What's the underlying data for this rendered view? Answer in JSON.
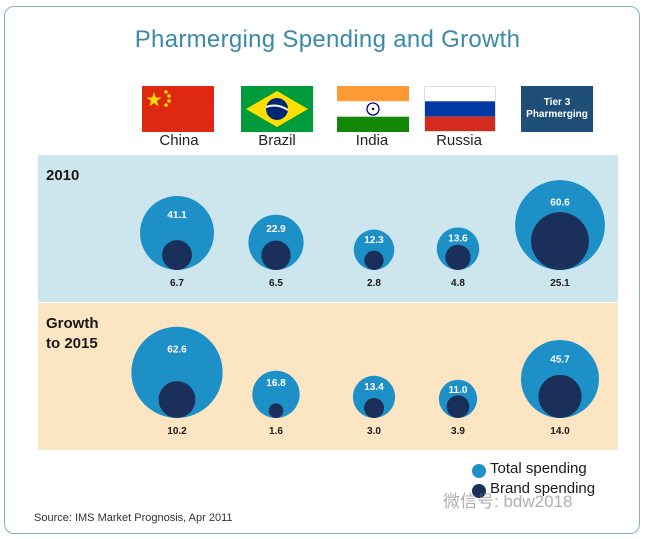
{
  "title": "Pharmerging Spending and Growth",
  "columns": [
    {
      "label": "China",
      "flag": "china-flag"
    },
    {
      "label": "Brazil",
      "flag": "brazil-flag"
    },
    {
      "label": "India",
      "flag": "india-flag"
    },
    {
      "label": "Russia",
      "flag": "russia-flag"
    },
    {
      "label": "Tier 3 Pharmerging",
      "flag": "tier-3-box"
    }
  ],
  "tier_box": {
    "line1": "Tier 3",
    "line2": "Pharmerging"
  },
  "rows": [
    {
      "label_line1": "2010",
      "label_line2": ""
    },
    {
      "label_line1": "Growth",
      "label_line2": "to 2015"
    }
  ],
  "legend": {
    "total": "Total spending",
    "brand": "Brand spending"
  },
  "source": "Source: IMS Market Prognosis, Apr 2011",
  "watermark": "微信号: bdw2018",
  "colors": {
    "total": "#1e90c8",
    "brand": "#1b2f5b",
    "band_2010": "#cde6ee",
    "band_2015": "#fbe5c2",
    "title": "#3b8aa8"
  },
  "chart_data": {
    "type": "bubble",
    "categories": [
      "China",
      "Brazil",
      "India",
      "Russia",
      "Tier 3 Pharmerging"
    ],
    "row_groups": [
      "2010",
      "Growth to 2015"
    ],
    "series": [
      {
        "name": "Total spending",
        "group": "2010",
        "values": [
          41.1,
          22.9,
          12.3,
          13.6,
          60.6
        ]
      },
      {
        "name": "Brand spending",
        "group": "2010",
        "values": [
          6.7,
          6.5,
          2.8,
          4.8,
          25.1
        ]
      },
      {
        "name": "Total spending",
        "group": "Growth to 2015",
        "values": [
          62.6,
          16.8,
          13.4,
          11.0,
          45.7
        ]
      },
      {
        "name": "Brand spending",
        "group": "Growth to 2015",
        "values": [
          10.2,
          1.6,
          3.0,
          3.9,
          14.0
        ]
      }
    ],
    "labels": {
      "2010_total": [
        "41.1",
        "22.9",
        "12.3",
        "13.6",
        "60.6"
      ],
      "2010_brand": [
        "6.7",
        "6.5",
        "2.8",
        "4.8",
        "25.1"
      ],
      "2015_total": [
        "62.6",
        "16.8",
        "13.4",
        "11.0",
        "45.7"
      ],
      "2015_brand": [
        "10.2",
        "1.6",
        "3.0",
        "3.9",
        "14.0"
      ]
    },
    "legend_position": "bottom-right"
  }
}
